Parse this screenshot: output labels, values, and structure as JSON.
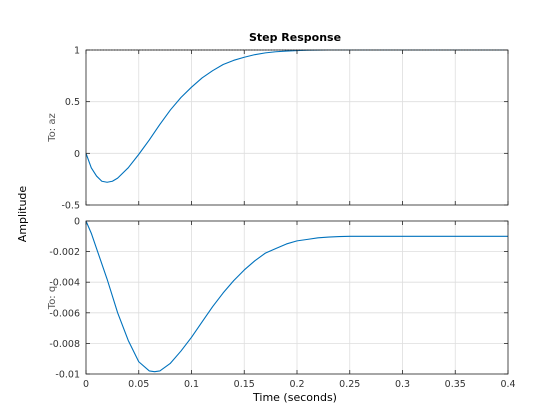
{
  "figure": {
    "title": "Step Response",
    "xlabel": "Time (seconds)",
    "ylabel": "Amplitude"
  },
  "colors": {
    "line": "#0072BD",
    "grid": "#dedede",
    "axes": "#262626",
    "background": "#ffffff"
  },
  "chart_data": [
    {
      "type": "line",
      "title": "Step Response",
      "xlabel": "",
      "ylabel": "To: az",
      "xlim": [
        0,
        0.4
      ],
      "ylim": [
        -0.5,
        1
      ],
      "xticks": [
        0,
        0.05,
        0.1,
        0.15,
        0.2,
        0.25,
        0.3,
        0.35,
        0.4
      ],
      "xtick_labels": [],
      "yticks": [
        -0.5,
        0,
        0.5,
        1
      ],
      "ytick_labels": [
        "-0.5",
        "0",
        "0.5",
        "1"
      ],
      "grid": true,
      "series": [
        {
          "x": [
            0,
            0.005,
            0.01,
            0.015,
            0.02,
            0.025,
            0.03,
            0.04,
            0.05,
            0.06,
            0.07,
            0.08,
            0.09,
            0.1,
            0.11,
            0.12,
            0.13,
            0.14,
            0.15,
            0.16,
            0.17,
            0.18,
            0.19,
            0.2,
            0.21,
            0.22,
            0.23,
            0.24,
            0.26,
            0.3,
            0.35,
            0.4
          ],
          "y": [
            0,
            -0.14,
            -0.22,
            -0.27,
            -0.28,
            -0.27,
            -0.24,
            -0.14,
            -0.01,
            0.13,
            0.28,
            0.42,
            0.54,
            0.64,
            0.73,
            0.8,
            0.86,
            0.9,
            0.93,
            0.955,
            0.972,
            0.983,
            0.99,
            0.995,
            0.998,
            0.999,
            1.0,
            1.0,
            1.0,
            1.0,
            1.0,
            1.0
          ]
        },
        {
          "style": "dotted",
          "x": [
            0,
            0.4
          ],
          "y": [
            1,
            1
          ]
        }
      ]
    },
    {
      "type": "line",
      "xlabel": "Time (seconds)",
      "ylabel": "To: q",
      "xlim": [
        0,
        0.4
      ],
      "ylim": [
        -0.01,
        0
      ],
      "xticks": [
        0,
        0.05,
        0.1,
        0.15,
        0.2,
        0.25,
        0.3,
        0.35,
        0.4
      ],
      "xtick_labels": [
        "0",
        "0.05",
        "0.1",
        "0.15",
        "0.2",
        "0.25",
        "0.3",
        "0.35",
        "0.4"
      ],
      "yticks": [
        -0.01,
        -0.008,
        -0.006,
        -0.004,
        -0.002,
        0
      ],
      "ytick_labels": [
        "-0.01",
        "-0.008",
        "-0.006",
        "-0.004",
        "-0.002",
        "0"
      ],
      "grid": true,
      "series": [
        {
          "x": [
            0,
            0.005,
            0.01,
            0.02,
            0.03,
            0.04,
            0.05,
            0.06,
            0.065,
            0.07,
            0.08,
            0.09,
            0.1,
            0.11,
            0.12,
            0.13,
            0.14,
            0.15,
            0.16,
            0.17,
            0.18,
            0.19,
            0.2,
            0.21,
            0.22,
            0.23,
            0.24,
            0.25,
            0.26,
            0.28,
            0.3,
            0.35,
            0.4
          ],
          "y": [
            0,
            -0.0008,
            -0.0018,
            -0.0038,
            -0.006,
            -0.0078,
            -0.0092,
            -0.0098,
            -0.00985,
            -0.0098,
            -0.0093,
            -0.0085,
            -0.0076,
            -0.0066,
            -0.0056,
            -0.0047,
            -0.0039,
            -0.0032,
            -0.0026,
            -0.0021,
            -0.0018,
            -0.0015,
            -0.0013,
            -0.0012,
            -0.0011,
            -0.00105,
            -0.00102,
            -0.001,
            -0.001,
            -0.001,
            -0.001,
            -0.001,
            -0.001
          ]
        }
      ]
    }
  ]
}
